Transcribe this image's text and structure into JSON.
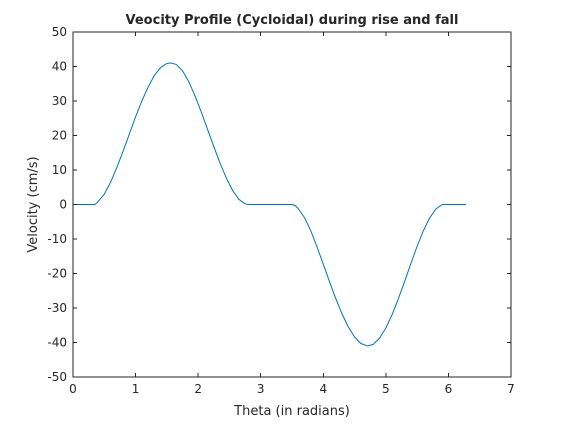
{
  "chart_data": {
    "type": "line",
    "title": "Veocity Profile (Cycloidal) during rise and fall",
    "xlabel": "Theta (in radians)",
    "ylabel": "Velocity (cm/s)",
    "xlim": [
      0,
      7
    ],
    "ylim": [
      -50,
      50
    ],
    "xticks": [
      0,
      1,
      2,
      3,
      4,
      5,
      6,
      7
    ],
    "yticks": [
      -50,
      -40,
      -30,
      -20,
      -10,
      0,
      10,
      20,
      30,
      40,
      50
    ],
    "grid": false,
    "series": [
      {
        "name": "velocity",
        "color": "#0072BD",
        "x": [
          0,
          0.35,
          0.4,
          0.5,
          0.6,
          0.7,
          0.8,
          0.9,
          1.0,
          1.1,
          1.2,
          1.3,
          1.4,
          1.5,
          1.57,
          1.65,
          1.75,
          1.85,
          1.95,
          2.05,
          2.15,
          2.25,
          2.35,
          2.45,
          2.55,
          2.65,
          2.75,
          2.8,
          3.5,
          3.55,
          3.6,
          3.7,
          3.8,
          3.9,
          4.0,
          4.1,
          4.2,
          4.3,
          4.4,
          4.5,
          4.6,
          4.71,
          4.8,
          4.9,
          5.0,
          5.1,
          5.2,
          5.3,
          5.4,
          5.5,
          5.6,
          5.7,
          5.8,
          5.9,
          6.28
        ],
        "y": [
          0,
          0,
          0.8,
          3.0,
          6.4,
          10.7,
          15.4,
          20.4,
          25.4,
          30.0,
          34.0,
          37.4,
          39.7,
          40.9,
          41.0,
          40.6,
          38.8,
          35.6,
          31.5,
          26.8,
          21.8,
          16.8,
          12.0,
          7.7,
          4.1,
          1.5,
          0.2,
          0,
          0,
          -0.3,
          -1.2,
          -3.8,
          -7.6,
          -12.3,
          -17.3,
          -22.4,
          -27.3,
          -31.7,
          -35.5,
          -38.4,
          -40.3,
          -41.0,
          -40.5,
          -38.7,
          -35.8,
          -31.9,
          -27.3,
          -22.3,
          -17.1,
          -12.1,
          -7.6,
          -3.9,
          -1.3,
          0,
          0
        ]
      }
    ]
  }
}
